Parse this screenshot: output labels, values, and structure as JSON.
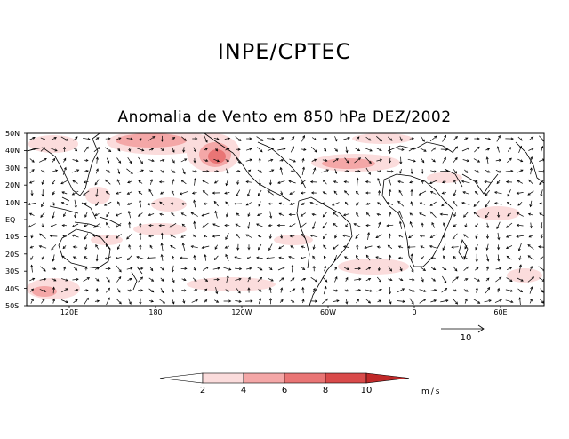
{
  "header": {
    "organization": "INPE/CPTEC",
    "map_title": "Anomalia de Vento em 850 hPa DEZ/2002"
  },
  "map": {
    "lat_labels": [
      "50N",
      "40N",
      "30N",
      "20N",
      "10N",
      "EQ",
      "10S",
      "20S",
      "30S",
      "40S",
      "50S"
    ],
    "lon_labels": [
      "120E",
      "180",
      "120W",
      "60W",
      "0",
      "60E"
    ],
    "reference_vector": {
      "label": "10",
      "magnitude": 10
    }
  },
  "colorbar": {
    "ticks": [
      "2",
      "4",
      "6",
      "8",
      "10"
    ],
    "units": "m/s",
    "colors": [
      "#ffffff",
      "#fbdcdc",
      "#f4a7a7",
      "#e97575",
      "#d94a4a",
      "#c02828"
    ]
  },
  "colors": {
    "land_outline": "#000000",
    "vector": "#000000",
    "anomaly_low": "#fbdcdc",
    "anomaly_high": "#d94a4a"
  }
}
